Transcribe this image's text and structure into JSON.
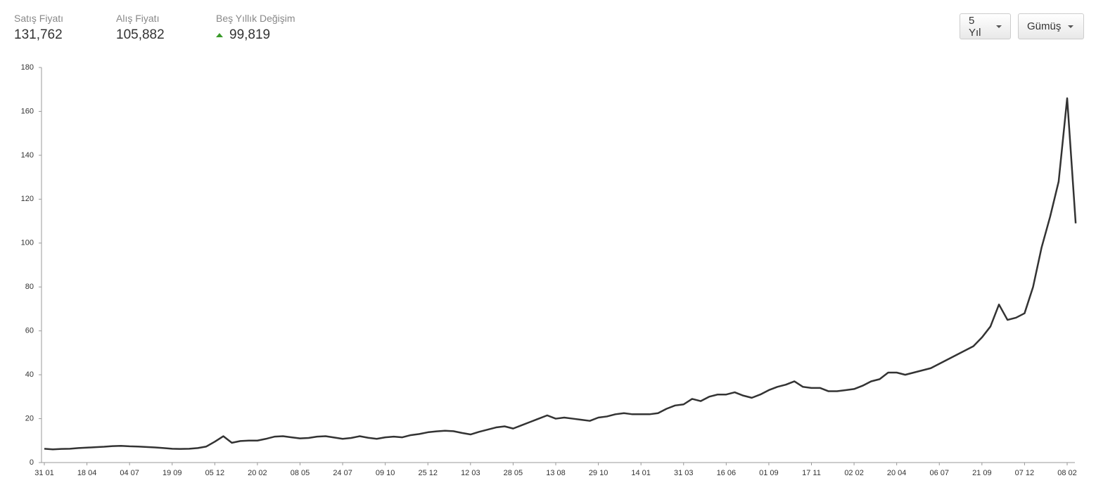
{
  "header": {
    "stats": [
      {
        "label": "Satış Fiyatı",
        "value": "131,762"
      },
      {
        "label": "Alış Fiyatı",
        "value": "105,882"
      },
      {
        "label": "Beş Yıllık Değişim",
        "value": "99,819"
      }
    ],
    "buttons": [
      "5 Yıl",
      "Gümüş"
    ]
  },
  "chart_data": {
    "type": "line",
    "color": "#333333",
    "categories": [
      "31 01",
      null,
      null,
      null,
      null,
      "18 04",
      null,
      null,
      null,
      null,
      "04 07",
      null,
      null,
      null,
      null,
      "19 09",
      null,
      null,
      null,
      null,
      "05 12",
      null,
      null,
      null,
      null,
      "20 02",
      null,
      null,
      null,
      null,
      "08 05",
      null,
      null,
      null,
      null,
      "24 07",
      null,
      null,
      null,
      null,
      "09 10",
      null,
      null,
      null,
      null,
      "25 12",
      null,
      null,
      null,
      null,
      "12 03",
      null,
      null,
      null,
      null,
      "28 05",
      null,
      null,
      null,
      null,
      "13 08",
      null,
      null,
      null,
      null,
      "29 10",
      null,
      null,
      null,
      null,
      "14 01",
      null,
      null,
      null,
      null,
      "31 03",
      null,
      null,
      null,
      null,
      "16 06",
      null,
      null,
      null,
      null,
      "01 09",
      null,
      null,
      null,
      null,
      "17 11",
      null,
      null,
      null,
      null,
      "02 02",
      null,
      null,
      null,
      null,
      "20 04",
      null,
      null,
      null,
      null,
      "06 07",
      null,
      null,
      null,
      null,
      "21 09",
      null,
      null,
      null,
      null,
      "07 12",
      null,
      null,
      null,
      null,
      "08 02",
      null
    ],
    "values": [
      6.3,
      6.0,
      6.2,
      6.3,
      6.6,
      6.8,
      7.0,
      7.2,
      7.5,
      7.6,
      7.4,
      7.3,
      7.1,
      6.9,
      6.6,
      6.3,
      6.2,
      6.3,
      6.6,
      7.3,
      9.5,
      12.0,
      9.0,
      9.8,
      10.0,
      10.0,
      10.8,
      11.8,
      12.0,
      11.5,
      11.0,
      11.2,
      11.8,
      12.0,
      11.4,
      10.8,
      11.2,
      12.0,
      11.3,
      10.8,
      11.5,
      11.8,
      11.5,
      12.5,
      13.0,
      13.8,
      14.2,
      14.5,
      14.3,
      13.5,
      12.8,
      14.0,
      15.0,
      16.0,
      16.5,
      15.5,
      17.0,
      18.5,
      20.0,
      21.5,
      20.0,
      20.5,
      20.0,
      19.5,
      19.0,
      20.5,
      21.0,
      22.0,
      22.5,
      22.0,
      22.0,
      22.0,
      22.5,
      24.5,
      26.0,
      26.5,
      29.0,
      28.0,
      30.0,
      31.0,
      31.0,
      32.0,
      30.5,
      29.5,
      31.0,
      33.0,
      34.5,
      35.5,
      37.0,
      34.5,
      34.0,
      34.0,
      32.5,
      32.5,
      33.0,
      33.5,
      35.0,
      37.0,
      38.0,
      41.0,
      41.0,
      40.0,
      41.0,
      42.0,
      43.0,
      45.0,
      47.0,
      49.0,
      51.0,
      53.0,
      57.0,
      62.0,
      72.0,
      65.0,
      66.0,
      68.0,
      80.0,
      98.0,
      112.0,
      128.0,
      166.0,
      109.0
    ],
    "ylim": [
      0,
      180
    ],
    "yticks": [
      0,
      20,
      40,
      60,
      80,
      100,
      120,
      140,
      160,
      180
    ]
  }
}
